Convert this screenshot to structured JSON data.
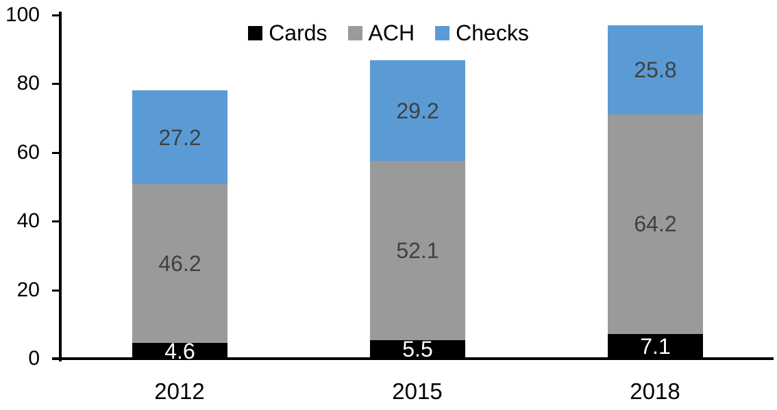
{
  "chart_data": {
    "type": "bar",
    "stacked": true,
    "title": "",
    "xlabel": "",
    "ylabel": "",
    "categories": [
      "2012",
      "2015",
      "2018"
    ],
    "series": [
      {
        "name": "Cards",
        "color": "#000000",
        "label_color": "#ffffff",
        "values": [
          4.6,
          5.5,
          7.1
        ]
      },
      {
        "name": "ACH",
        "color": "#9a9a9a",
        "label_color": "#404040",
        "values": [
          46.2,
          52.1,
          64.2
        ]
      },
      {
        "name": "Checks",
        "color": "#5b9bd5",
        "label_color": "#404040",
        "values": [
          27.2,
          29.2,
          25.8
        ]
      }
    ],
    "totals": [
      78.0,
      86.8,
      97.1
    ],
    "ylim": [
      0,
      100
    ],
    "yticks": [
      0,
      20,
      40,
      60,
      80,
      100
    ],
    "grid": false,
    "legend_position": "top-center",
    "value_labels": "inside-center",
    "axis_color": "#000000",
    "background_color": "#ffffff"
  }
}
